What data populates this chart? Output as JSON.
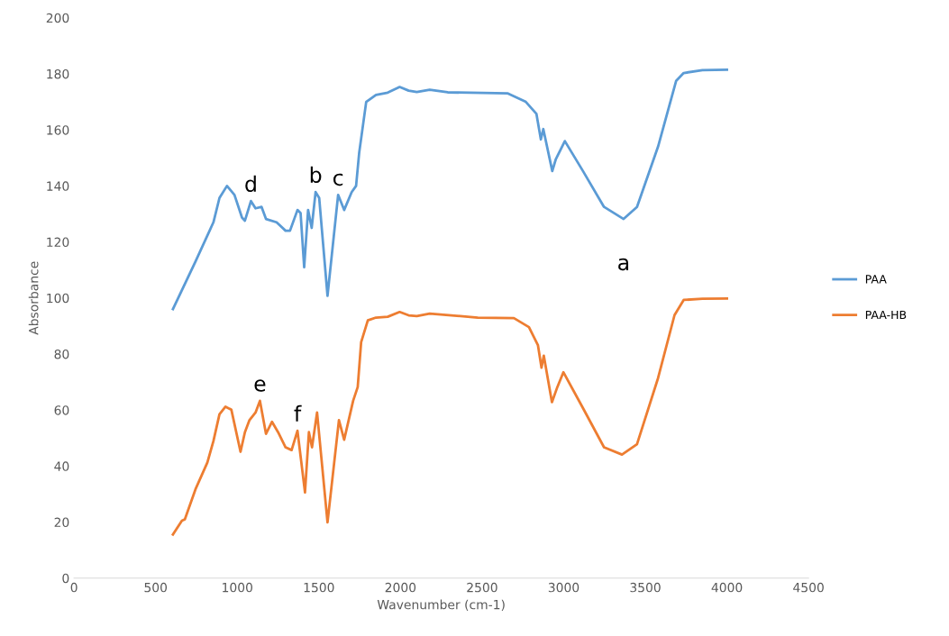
{
  "chart_data": {
    "type": "line",
    "xlabel": "Wavenumber (cm-1)",
    "ylabel": "Absorbance",
    "xlim": [
      0,
      4500
    ],
    "ylim": [
      0,
      200
    ],
    "xticks": [
      0,
      500,
      1000,
      1500,
      2000,
      2500,
      3000,
      3500,
      4000,
      4500
    ],
    "yticks": [
      0,
      20,
      40,
      60,
      80,
      100,
      120,
      140,
      160,
      180,
      200
    ],
    "grid": false,
    "legend": "right",
    "marker": "none",
    "line_style": "solid",
    "series": [
      {
        "name": "PAA",
        "color": "#5b9bd5",
        "x": [
          606,
          744,
          854,
          891,
          937,
          983,
          1029,
          1047,
          1084,
          1112,
          1149,
          1176,
          1241,
          1296,
          1323,
          1369,
          1388,
          1410,
          1434,
          1456,
          1480,
          1502,
          1553,
          1618,
          1655,
          1701,
          1728,
          1747,
          1790,
          1850,
          1922,
          1995,
          2050,
          2100,
          2179,
          2289,
          2658,
          2768,
          2833,
          2860,
          2875,
          2930,
          2952,
          3007,
          3118,
          3247,
          3367,
          3449,
          3578,
          3689,
          3735,
          3850,
          4000
        ],
        "values": [
          96,
          113,
          127,
          135.7,
          140,
          136.8,
          128.7,
          127.6,
          134.6,
          132,
          132.5,
          128.2,
          127,
          124,
          124,
          131.4,
          130.3,
          111,
          131.4,
          125,
          137.8,
          135.7,
          100.8,
          136.8,
          131.4,
          137.8,
          140,
          151.8,
          170,
          172.5,
          173.3,
          175.3,
          174,
          173.5,
          174.3,
          173.4,
          173,
          170,
          165.7,
          156.6,
          160.3,
          145.3,
          149.6,
          156,
          145.3,
          132.5,
          128.2,
          132.5,
          154,
          177.5,
          180.3,
          181.3,
          181.5
        ]
      },
      {
        "name": "PAA-HB",
        "color": "#ed7d31",
        "x": [
          606,
          661,
          679,
          744,
          817,
          854,
          891,
          928,
          964,
          1020,
          1047,
          1075,
          1112,
          1139,
          1176,
          1213,
          1250,
          1296,
          1333,
          1369,
          1415,
          1439,
          1458,
          1489,
          1553,
          1623,
          1655,
          1710,
          1738,
          1759,
          1800,
          1850,
          1922,
          1995,
          2050,
          2100,
          2179,
          2474,
          2695,
          2787,
          2842,
          2864,
          2878,
          2928,
          2961,
          2998,
          3118,
          3247,
          3357,
          3449,
          3578,
          3679,
          3735,
          3850,
          4000
        ],
        "values": [
          15.6,
          20.5,
          21,
          31.7,
          41.3,
          48.9,
          58.5,
          61.2,
          60.1,
          45.1,
          52.1,
          56.4,
          59.1,
          63.3,
          51.5,
          55.8,
          52.1,
          46.7,
          45.7,
          52.6,
          30.6,
          52.1,
          46.7,
          59.1,
          19.9,
          56.4,
          49.4,
          63.3,
          68.2,
          84.2,
          92,
          93,
          93.3,
          95,
          93.8,
          93.5,
          94.4,
          93,
          92.8,
          89.6,
          83.2,
          75.1,
          79.4,
          62.8,
          68.2,
          73.5,
          60.7,
          46.7,
          44.1,
          47.8,
          71.4,
          93.9,
          99.3,
          99.7,
          99.8
        ]
      }
    ],
    "annotations": [
      {
        "text": "a",
        "x": 3367,
        "y": 128.2
      },
      {
        "text": "b",
        "x": 1480,
        "y": 137.8
      },
      {
        "text": "c",
        "x": 1618,
        "y": 136.8
      },
      {
        "text": "d",
        "x": 1084,
        "y": 134.6
      },
      {
        "text": "e",
        "x": 1139,
        "y": 63.3
      },
      {
        "text": "f",
        "x": 1369,
        "y": 52.6
      }
    ]
  }
}
